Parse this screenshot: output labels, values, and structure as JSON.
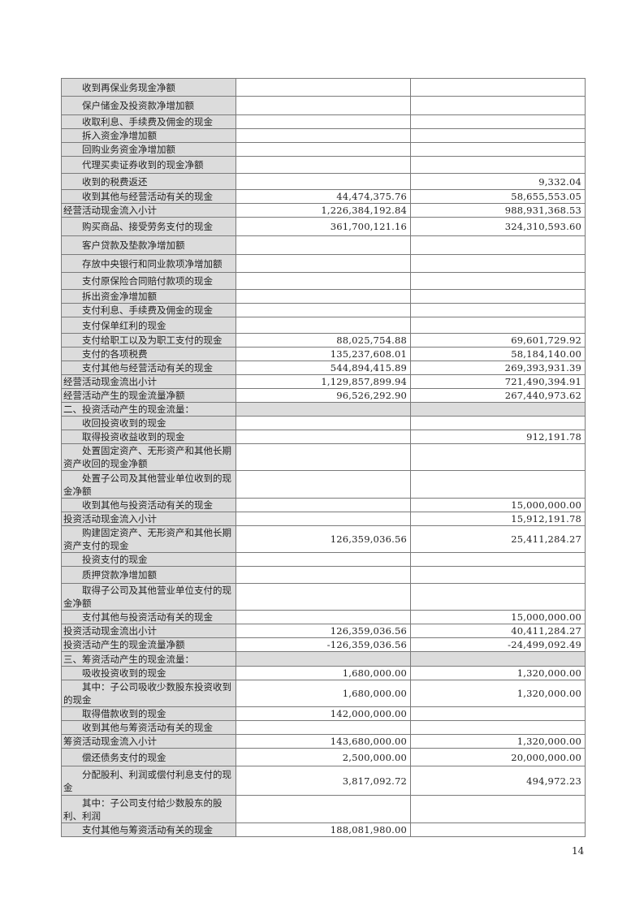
{
  "table": {
    "rows": [
      {
        "label": "收到再保业务现金净额",
        "current": "",
        "previous": "",
        "kind": "item"
      },
      {
        "label": "保户储金及投资款净增加额",
        "current": "",
        "previous": "",
        "kind": "item"
      },
      {
        "label": "收取利息、手续费及佣金的现金",
        "current": "",
        "previous": "",
        "kind": "item"
      },
      {
        "label": "拆入资金净增加额",
        "current": "",
        "previous": "",
        "kind": "item"
      },
      {
        "label": "回购业务资金净增加额",
        "current": "",
        "previous": "",
        "kind": "item"
      },
      {
        "label": "代理买卖证券收到的现金净额",
        "current": "",
        "previous": "",
        "kind": "item"
      },
      {
        "label": "收到的税费返还",
        "current": "",
        "previous": "9,332.04",
        "kind": "item"
      },
      {
        "label": "收到其他与经营活动有关的现金",
        "current": "44,474,375.76",
        "previous": "58,655,553.05",
        "kind": "item"
      },
      {
        "label": "经营活动现金流入小计",
        "current": "1,226,384,192.84",
        "previous": "988,931,368.53",
        "kind": "subtotal"
      },
      {
        "label": "购买商品、接受劳务支付的现金",
        "current": "361,700,121.16",
        "previous": "324,310,593.60",
        "kind": "item"
      },
      {
        "label": "客户贷款及垫款净增加额",
        "current": "",
        "previous": "",
        "kind": "item"
      },
      {
        "label": "存放中央银行和同业款项净增加额",
        "current": "",
        "previous": "",
        "kind": "item"
      },
      {
        "label": "支付原保险合同赔付款项的现金",
        "current": "",
        "previous": "",
        "kind": "item"
      },
      {
        "label": "拆出资金净增加额",
        "current": "",
        "previous": "",
        "kind": "item"
      },
      {
        "label": "支付利息、手续费及佣金的现金",
        "current": "",
        "previous": "",
        "kind": "item"
      },
      {
        "label": "支付保单红利的现金",
        "current": "",
        "previous": "",
        "kind": "item"
      },
      {
        "label": "支付给职工以及为职工支付的现金",
        "current": "88,025,754.88",
        "previous": "69,601,729.92",
        "kind": "item"
      },
      {
        "label": "支付的各项税费",
        "current": "135,237,608.01",
        "previous": "58,184,140.00",
        "kind": "item"
      },
      {
        "label": "支付其他与经营活动有关的现金",
        "current": "544,894,415.89",
        "previous": "269,393,931.39",
        "kind": "item"
      },
      {
        "label": "经营活动现金流出小计",
        "current": "1,129,857,899.94",
        "previous": "721,490,394.91",
        "kind": "subtotal"
      },
      {
        "label": "经营活动产生的现金流量净额",
        "current": "96,526,292.90",
        "previous": "267,440,973.62",
        "kind": "subtotal"
      },
      {
        "label": "二、投资活动产生的现金流量：",
        "current": "",
        "previous": "",
        "kind": "section"
      },
      {
        "label": "收回投资收到的现金",
        "current": "",
        "previous": "",
        "kind": "item"
      },
      {
        "label": "取得投资收益收到的现金",
        "current": "",
        "previous": "912,191.78",
        "kind": "item"
      },
      {
        "label": "处置固定资产、无形资产和其他长期资产收回的现金净额",
        "current": "",
        "previous": "",
        "kind": "item"
      },
      {
        "label": "处置子公司及其他营业单位收到的现金净额",
        "current": "",
        "previous": "",
        "kind": "item"
      },
      {
        "label": "收到其他与投资活动有关的现金",
        "current": "",
        "previous": "15,000,000.00",
        "kind": "item"
      },
      {
        "label": "投资活动现金流入小计",
        "current": "",
        "previous": "15,912,191.78",
        "kind": "subtotal"
      },
      {
        "label": "购建固定资产、无形资产和其他长期资产支付的现金",
        "current": "126,359,036.56",
        "previous": "25,411,284.27",
        "kind": "item"
      },
      {
        "label": "投资支付的现金",
        "current": "",
        "previous": "",
        "kind": "item"
      },
      {
        "label": "质押贷款净增加额",
        "current": "",
        "previous": "",
        "kind": "item"
      },
      {
        "label": "取得子公司及其他营业单位支付的现金净额",
        "current": "",
        "previous": "",
        "kind": "item"
      },
      {
        "label": "支付其他与投资活动有关的现金",
        "current": "",
        "previous": "15,000,000.00",
        "kind": "item"
      },
      {
        "label": "投资活动现金流出小计",
        "current": "126,359,036.56",
        "previous": "40,411,284.27",
        "kind": "subtotal"
      },
      {
        "label": "投资活动产生的现金流量净额",
        "current": "-126,359,036.56",
        "previous": "-24,499,092.49",
        "kind": "subtotal"
      },
      {
        "label": "三、筹资活动产生的现金流量：",
        "current": "",
        "previous": "",
        "kind": "section"
      },
      {
        "label": "吸收投资收到的现金",
        "current": "1,680,000.00",
        "previous": "1,320,000.00",
        "kind": "item"
      },
      {
        "label": "其中：子公司吸收少数股东投资收到的现金",
        "current": "1,680,000.00",
        "previous": "1,320,000.00",
        "kind": "item"
      },
      {
        "label": "取得借款收到的现金",
        "current": "142,000,000.00",
        "previous": "",
        "kind": "item"
      },
      {
        "label": "收到其他与筹资活动有关的现金",
        "current": "",
        "previous": "",
        "kind": "item"
      },
      {
        "label": "筹资活动现金流入小计",
        "current": "143,680,000.00",
        "previous": "1,320,000.00",
        "kind": "subtotal"
      },
      {
        "label": "偿还债务支付的现金",
        "current": "2,500,000.00",
        "previous": "20,000,000.00",
        "kind": "item"
      },
      {
        "label": "分配股利、利润或偿付利息支付的现金",
        "current": "3,817,092.72",
        "previous": "494,972.23",
        "kind": "item"
      },
      {
        "label": "其中：子公司支付给少数股东的股利、利润",
        "current": "",
        "previous": "",
        "kind": "item"
      },
      {
        "label": "支付其他与筹资活动有关的现金",
        "current": "188,081,980.00",
        "previous": "",
        "kind": "item"
      }
    ]
  },
  "page_number": "14"
}
